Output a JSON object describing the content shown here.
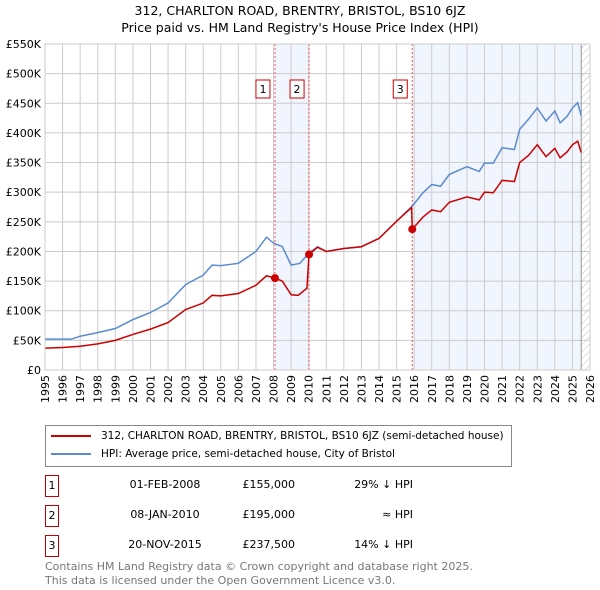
{
  "chart_data": {
    "type": "line",
    "title": "312, CHARLTON ROAD, BRENTRY, BRISTOL, BS10 6JZ",
    "subtitle": "Price paid vs. HM Land Registry's House Price Index (HPI)",
    "xlim": [
      1995,
      2026
    ],
    "ylim": [
      0,
      550000
    ],
    "x_ticks": [
      "1995",
      "1996",
      "1997",
      "1998",
      "1999",
      "2000",
      "2001",
      "2002",
      "2003",
      "2004",
      "2005",
      "2006",
      "2007",
      "2008",
      "2009",
      "2010",
      "2011",
      "2012",
      "2013",
      "2014",
      "2015",
      "2016",
      "2017",
      "2018",
      "2019",
      "2020",
      "2021",
      "2022",
      "2023",
      "2024",
      "2025",
      "2026"
    ],
    "y_ticks": [
      {
        "v": 0,
        "l": "£0"
      },
      {
        "v": 50000,
        "l": "£50K"
      },
      {
        "v": 100000,
        "l": "£100K"
      },
      {
        "v": 150000,
        "l": "£150K"
      },
      {
        "v": 200000,
        "l": "£200K"
      },
      {
        "v": 250000,
        "l": "£250K"
      },
      {
        "v": 300000,
        "l": "£300K"
      },
      {
        "v": 350000,
        "l": "£350K"
      },
      {
        "v": 400000,
        "l": "£400K"
      },
      {
        "v": 450000,
        "l": "£450K"
      },
      {
        "v": 500000,
        "l": "£500K"
      },
      {
        "v": 550000,
        "l": "£550K"
      }
    ],
    "grid": true,
    "series": [
      {
        "name": "312, CHARLTON ROAD, BRENTRY, BRISTOL, BS10 6JZ (semi-detached house)",
        "color": "#cc0000",
        "x": [
          1995,
          1996,
          1997,
          1998,
          1999,
          2000,
          2001,
          2002,
          2003,
          2004,
          2004.5,
          2005,
          2006,
          2007,
          2007.6,
          2008.08,
          2008.5,
          2009,
          2009.4,
          2009.9,
          2010.02,
          2010.5,
          2011,
          2012,
          2013,
          2014,
          2015,
          2015.85,
          2015.89,
          2016.5,
          2017,
          2017.5,
          2018,
          2019,
          2019.7,
          2020,
          2020.5,
          2021,
          2021.7,
          2022,
          2022.5,
          2023,
          2023.5,
          2024,
          2024.3,
          2024.7,
          2025,
          2025.3,
          2025.5
        ],
        "y": [
          37000,
          38000,
          40000,
          44000,
          50000,
          60000,
          69000,
          80000,
          102000,
          113000,
          126000,
          125000,
          129000,
          143000,
          159000,
          155000,
          150000,
          127000,
          126000,
          138000,
          195000,
          207000,
          200000,
          205000,
          208000,
          222000,
          251000,
          274000,
          237500,
          258000,
          270000,
          267000,
          283000,
          292000,
          287000,
          300000,
          299000,
          320000,
          318000,
          350000,
          362000,
          380000,
          360000,
          374000,
          358000,
          368000,
          380000,
          386000,
          367000
        ]
      },
      {
        "name": "HPI: Average price, semi-detached house, City of Bristol",
        "color": "#5b8bd0",
        "x": [
          1995,
          1996.5,
          1997,
          1998,
          1999,
          2000,
          2001,
          2002,
          2003,
          2004,
          2004.5,
          2005,
          2006,
          2007,
          2007.6,
          2008,
          2008.5,
          2009,
          2009.5,
          2010,
          2010.5,
          2011,
          2012,
          2013,
          2014,
          2015,
          2015.9,
          2016.5,
          2017,
          2017.5,
          2018,
          2019,
          2019.7,
          2020,
          2020.5,
          2021,
          2021.7,
          2022,
          2022.5,
          2023,
          2023.5,
          2024,
          2024.3,
          2024.7,
          2025,
          2025.3,
          2025.5
        ],
        "y": [
          52000,
          52000,
          57000,
          63000,
          70000,
          85000,
          97000,
          113000,
          144000,
          160000,
          177000,
          176000,
          180000,
          200000,
          224000,
          214000,
          208000,
          177000,
          180000,
          197000,
          208000,
          200000,
          205000,
          208000,
          222000,
          251000,
          277000,
          299000,
          313000,
          310000,
          330000,
          343000,
          335000,
          349000,
          349000,
          375000,
          372000,
          406000,
          423000,
          442000,
          420000,
          437000,
          417000,
          428000,
          442000,
          451000,
          429000
        ]
      }
    ],
    "sales": [
      {
        "label": "1",
        "x": 2008.08,
        "y": 155000
      },
      {
        "label": "2",
        "x": 2010.02,
        "y": 195000
      },
      {
        "label": "3",
        "x": 2015.89,
        "y": 237500
      }
    ],
    "shaded": [
      [
        2008.08,
        2010.02
      ],
      [
        2015.89,
        2025.5
      ]
    ],
    "forecast_start": 2025.5,
    "legend": [
      "312, CHARLTON ROAD, BRENTRY, BRISTOL, BS10 6JZ (semi-detached house)",
      "HPI: Average price, semi-detached house, City of Bristol"
    ]
  },
  "table": [
    {
      "num": "1",
      "date": "01-FEB-2008",
      "price": "£155,000",
      "rel": "29% ↓ HPI"
    },
    {
      "num": "2",
      "date": "08-JAN-2010",
      "price": "£195,000",
      "rel": "≈ HPI"
    },
    {
      "num": "3",
      "date": "20-NOV-2015",
      "price": "£237,500",
      "rel": "14% ↓ HPI"
    }
  ],
  "footer": [
    "Contains HM Land Registry data © Crown copyright and database right 2025.",
    "This data is licensed under the Open Government Licence v3.0."
  ]
}
